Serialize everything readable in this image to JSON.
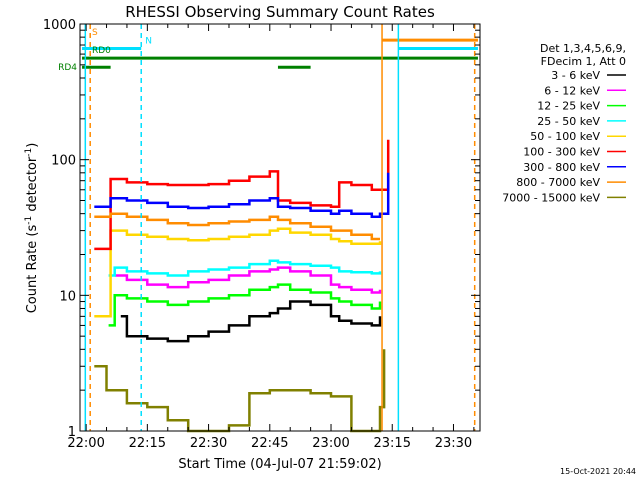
{
  "chart_data": {
    "type": "line",
    "title": "RHESSI Observing Summary Count Rates",
    "xlabel": "Start Time (04-Jul-07 21:59:02)",
    "ylabel_main": "Count Rate (s",
    "ylabel_sup1": "-1",
    "ylabel_mid": " detector",
    "ylabel_sup2": "-1",
    "ylabel_end": ")",
    "y_log": true,
    "ylim": [
      1,
      1000
    ],
    "xlim_minutes": [
      -1.5,
      96.5
    ],
    "x_ticks": [
      {
        "m": 0,
        "label": "22:00"
      },
      {
        "m": 15,
        "label": "22:15"
      },
      {
        "m": 30,
        "label": "22:30"
      },
      {
        "m": 45,
        "label": "22:45"
      },
      {
        "m": 60,
        "label": "23:00"
      },
      {
        "m": 75,
        "label": "23:15"
      },
      {
        "m": 90,
        "label": "23:30"
      }
    ],
    "y_ticks": [
      {
        "v": 1,
        "label": "1"
      },
      {
        "v": 10,
        "label": "10"
      },
      {
        "v": 100,
        "label": "100"
      },
      {
        "v": 1000,
        "label": "1000"
      }
    ],
    "legend": {
      "placement": "right",
      "header": [
        "Det 1,3,4,5,6,9,",
        "FDecim 1, Att 0"
      ]
    },
    "flags": [
      {
        "name": "S",
        "color": "#ff8c00",
        "segments": [
          [
            72.5,
            96
          ]
        ],
        "level": 760
      },
      {
        "name": "N",
        "color": "#00e0ff",
        "segments": [
          [
            -1,
            13.5
          ],
          [
            76.5,
            96
          ]
        ],
        "level": 660
      },
      {
        "name": "RD0",
        "color": "#008000",
        "segments": [
          [
            -1,
            96
          ]
        ],
        "level": 560
      },
      {
        "name": "RD4",
        "color": "#008000",
        "segments": [
          [
            -1,
            6
          ],
          [
            47,
            55
          ]
        ],
        "level": 480
      }
    ],
    "vlines": [
      {
        "m": -0.2,
        "color": "#00e0ff",
        "dashed": false
      },
      {
        "m": 1,
        "color": "#ff8c00",
        "dashed": true
      },
      {
        "m": 13.5,
        "color": "#00e0ff",
        "dashed": true
      },
      {
        "m": 72.5,
        "color": "#ff8c00",
        "dashed": false
      },
      {
        "m": 76.5,
        "color": "#00e0ff",
        "dashed": false
      },
      {
        "m": 95.2,
        "color": "#ff8c00",
        "dashed": true
      }
    ],
    "series": [
      {
        "name": "3 - 6 keV",
        "color": "#000000",
        "points": [
          [
            8.5,
            7
          ],
          [
            10,
            5
          ],
          [
            15,
            4.8
          ],
          [
            20,
            4.6
          ],
          [
            25,
            5
          ],
          [
            30,
            5.4
          ],
          [
            35,
            6
          ],
          [
            40,
            7
          ],
          [
            45,
            7.4
          ],
          [
            47,
            8
          ],
          [
            50,
            9
          ],
          [
            55,
            8.5
          ],
          [
            60,
            7
          ],
          [
            62,
            6.5
          ],
          [
            65,
            6.2
          ],
          [
            70,
            6
          ],
          [
            72,
            7
          ]
        ]
      },
      {
        "name": "6 - 12 keV",
        "color": "#ff00ff",
        "points": [
          [
            7,
            14
          ],
          [
            10,
            13
          ],
          [
            15,
            12
          ],
          [
            20,
            11.5
          ],
          [
            25,
            12.5
          ],
          [
            30,
            13
          ],
          [
            35,
            14
          ],
          [
            40,
            15
          ],
          [
            45,
            15.5
          ],
          [
            47,
            16
          ],
          [
            50,
            15
          ],
          [
            55,
            14
          ],
          [
            60,
            12
          ],
          [
            62,
            11.5
          ],
          [
            65,
            11
          ],
          [
            70,
            10.5
          ],
          [
            72,
            11
          ]
        ]
      },
      {
        "name": "12 - 25 keV",
        "color": "#00ff00",
        "points": [
          [
            5.5,
            6
          ],
          [
            7,
            10
          ],
          [
            10,
            9.5
          ],
          [
            15,
            9
          ],
          [
            20,
            8.5
          ],
          [
            25,
            9
          ],
          [
            30,
            9.5
          ],
          [
            35,
            10
          ],
          [
            40,
            11
          ],
          [
            45,
            11.5
          ],
          [
            47,
            12
          ],
          [
            50,
            11
          ],
          [
            55,
            10.5
          ],
          [
            60,
            9.5
          ],
          [
            62,
            9
          ],
          [
            65,
            8.5
          ],
          [
            70,
            8
          ],
          [
            72,
            9
          ]
        ]
      },
      {
        "name": "25 - 50 keV",
        "color": "#00ffff",
        "points": [
          [
            5.5,
            14
          ],
          [
            7,
            16
          ],
          [
            10,
            15
          ],
          [
            15,
            14.5
          ],
          [
            20,
            14
          ],
          [
            25,
            15
          ],
          [
            30,
            15.5
          ],
          [
            35,
            16
          ],
          [
            40,
            17
          ],
          [
            45,
            18
          ],
          [
            47,
            17.5
          ],
          [
            50,
            17
          ],
          [
            55,
            16.5
          ],
          [
            60,
            16
          ],
          [
            62,
            15
          ],
          [
            65,
            14.8
          ],
          [
            70,
            14.5
          ],
          [
            72,
            15
          ]
        ]
      },
      {
        "name": "50 - 100 keV",
        "color": "#ffd700",
        "points": [
          [
            2,
            7
          ],
          [
            6,
            30
          ],
          [
            10,
            28
          ],
          [
            15,
            27
          ],
          [
            20,
            26
          ],
          [
            25,
            25.5
          ],
          [
            30,
            26
          ],
          [
            35,
            27
          ],
          [
            40,
            28
          ],
          [
            45,
            30
          ],
          [
            47,
            31
          ],
          [
            50,
            29
          ],
          [
            55,
            28
          ],
          [
            60,
            26
          ],
          [
            62,
            25
          ],
          [
            65,
            24
          ],
          [
            70,
            24
          ],
          [
            72,
            25
          ]
        ]
      },
      {
        "name": "100 - 300 keV",
        "color": "#ff0000",
        "points": [
          [
            2,
            22
          ],
          [
            6,
            72
          ],
          [
            10,
            68
          ],
          [
            15,
            66
          ],
          [
            20,
            65
          ],
          [
            25,
            65
          ],
          [
            30,
            66
          ],
          [
            35,
            70
          ],
          [
            40,
            75
          ],
          [
            45,
            82
          ],
          [
            47,
            50
          ],
          [
            50,
            48
          ],
          [
            55,
            46
          ],
          [
            60,
            45
          ],
          [
            62,
            68
          ],
          [
            65,
            65
          ],
          [
            70,
            60
          ],
          [
            72,
            60
          ],
          [
            74,
            140
          ]
        ]
      },
      {
        "name": "300 - 800 keV",
        "color": "#0000ff",
        "points": [
          [
            2,
            45
          ],
          [
            6,
            52
          ],
          [
            10,
            50
          ],
          [
            15,
            48
          ],
          [
            20,
            45
          ],
          [
            25,
            44
          ],
          [
            30,
            45
          ],
          [
            35,
            47
          ],
          [
            40,
            50
          ],
          [
            45,
            52
          ],
          [
            47,
            45
          ],
          [
            50,
            44
          ],
          [
            55,
            42
          ],
          [
            60,
            40
          ],
          [
            62,
            42
          ],
          [
            65,
            40
          ],
          [
            70,
            38
          ],
          [
            72,
            40
          ],
          [
            74,
            80
          ]
        ]
      },
      {
        "name": "800 - 7000 keV",
        "color": "#ff8c00",
        "points": [
          [
            2,
            38
          ],
          [
            6,
            40
          ],
          [
            10,
            38
          ],
          [
            15,
            36
          ],
          [
            20,
            34
          ],
          [
            25,
            33
          ],
          [
            30,
            34
          ],
          [
            35,
            35
          ],
          [
            40,
            36
          ],
          [
            45,
            38
          ],
          [
            47,
            36
          ],
          [
            50,
            34
          ],
          [
            55,
            32
          ],
          [
            60,
            30
          ],
          [
            62,
            30
          ],
          [
            65,
            28
          ],
          [
            70,
            26
          ],
          [
            72,
            26
          ]
        ]
      },
      {
        "name": "7000 - 15000 keV",
        "color": "#808000",
        "points": [
          [
            2,
            3
          ],
          [
            5,
            2
          ],
          [
            10,
            1.6
          ],
          [
            15,
            1.5
          ],
          [
            20,
            1.2
          ],
          [
            25,
            1
          ],
          [
            30,
            1
          ],
          [
            35,
            1.1
          ],
          [
            40,
            1.9
          ],
          [
            45,
            2
          ],
          [
            50,
            2
          ],
          [
            55,
            1.9
          ],
          [
            60,
            1.8
          ],
          [
            65,
            1
          ],
          [
            70,
            1
          ],
          [
            72,
            1.5
          ],
          [
            73,
            4
          ]
        ]
      }
    ]
  },
  "footer": {
    "timestamp": "15-Oct-2021 20:44"
  }
}
